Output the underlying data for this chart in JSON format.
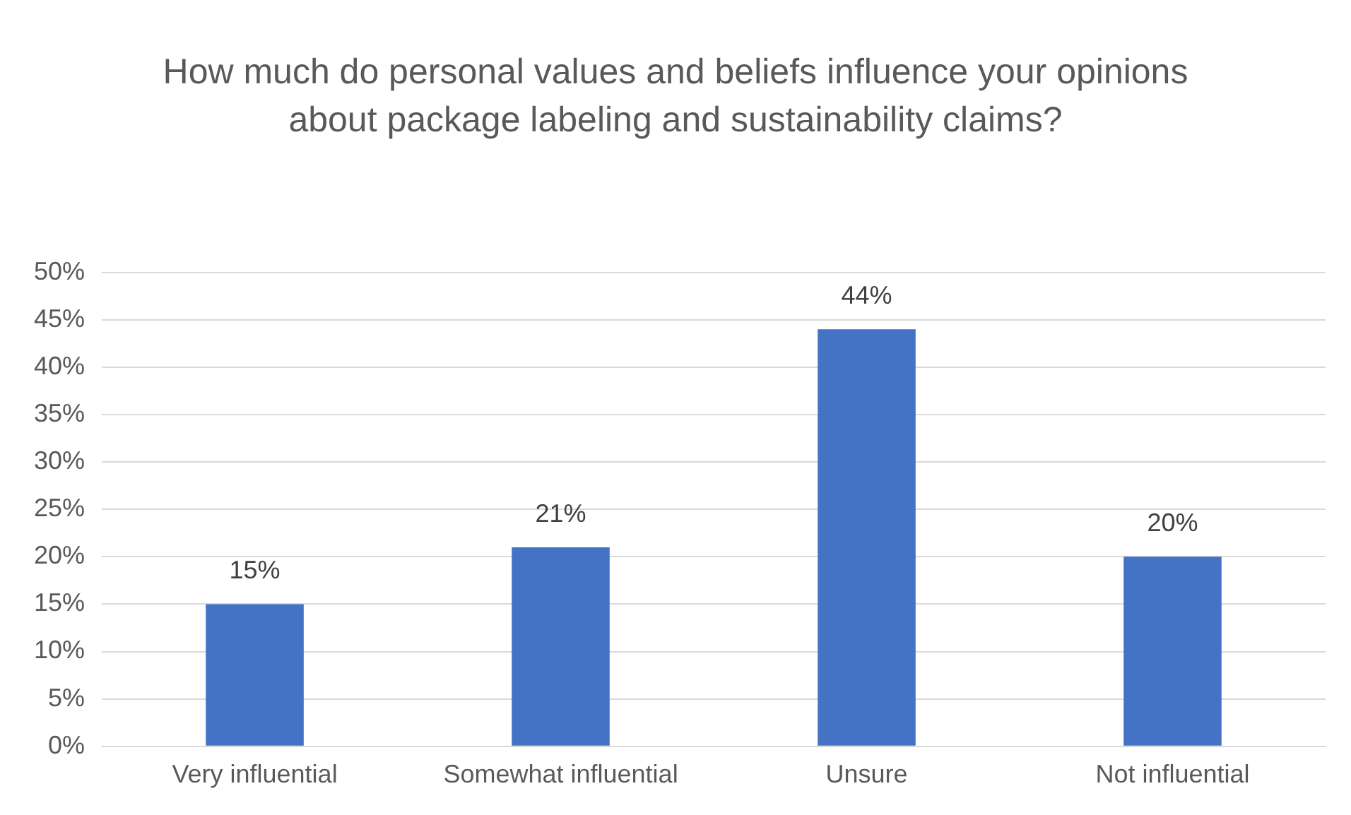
{
  "chart_data": {
    "type": "bar",
    "title": "How much do personal values and beliefs influence your opinions about package labeling and sustainability claims?",
    "categories": [
      "Very influential",
      "Somewhat influential",
      "Unsure",
      "Not influential"
    ],
    "values": [
      15,
      21,
      44,
      20
    ],
    "value_labels": [
      "15%",
      "21%",
      "44%",
      "20%"
    ],
    "color": "#4472c4",
    "ylim": [
      0,
      50
    ],
    "yticks": [
      {
        "value": 0,
        "label": "0%"
      },
      {
        "value": 5,
        "label": "5%"
      },
      {
        "value": 10,
        "label": "10%"
      },
      {
        "value": 15,
        "label": "15%"
      },
      {
        "value": 20,
        "label": "20%"
      },
      {
        "value": 25,
        "label": "25%"
      },
      {
        "value": 30,
        "label": "30%"
      },
      {
        "value": 35,
        "label": "35%"
      },
      {
        "value": 40,
        "label": "40%"
      },
      {
        "value": 45,
        "label": "45%"
      },
      {
        "value": 50,
        "label": "50%"
      }
    ],
    "grid": "y",
    "legend": false
  }
}
